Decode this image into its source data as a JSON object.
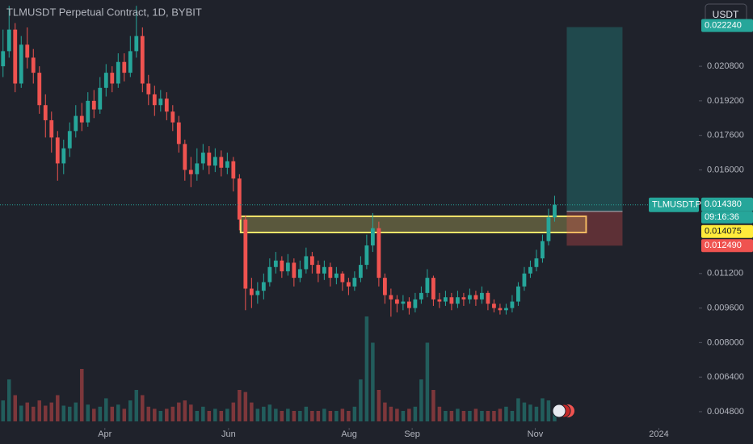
{
  "chart_data": {
    "type": "candlestick",
    "title": "TLMUSDT Perpetual Contract, 1D, BYBIT",
    "currency": "USDT",
    "up_color": "#26a69a",
    "down_color": "#ef5350",
    "open": [
      0.0208,
      0.0215,
      0.0225,
      0.02,
      0.0218,
      0.0212,
      0.0205,
      0.019,
      0.0183,
      0.0175,
      0.0163,
      0.017,
      0.0178,
      0.0185,
      0.0182,
      0.0192,
      0.0188,
      0.0198,
      0.0205,
      0.02,
      0.021,
      0.0205,
      0.0215,
      0.0222,
      0.02,
      0.0195,
      0.019,
      0.0193,
      0.0187,
      0.0182,
      0.0172,
      0.016,
      0.0158,
      0.0163,
      0.0168,
      0.0162,
      0.0166,
      0.0161,
      0.0164,
      0.0156,
      0.0137,
      0.0105,
      0.0102,
      0.0104,
      0.0108,
      0.0115,
      0.0118,
      0.0113,
      0.0117,
      0.011,
      0.0114,
      0.012,
      0.0116,
      0.0112,
      0.0115,
      0.011,
      0.0112,
      0.0108,
      0.0106,
      0.011,
      0.0116,
      0.0125,
      0.0133,
      0.011,
      0.0102,
      0.01,
      0.0098,
      0.0099,
      0.0096,
      0.01,
      0.0103,
      0.011,
      0.01,
      0.0099,
      0.0101,
      0.0098,
      0.0101,
      0.01,
      0.0102,
      0.01,
      0.0103,
      0.0098,
      0.0096,
      0.0095,
      0.0096,
      0.0099,
      0.0106,
      0.0112,
      0.0115,
      0.0119,
      0.0127,
      0.0138
    ],
    "high": [
      0.0225,
      0.0236,
      0.0228,
      0.0222,
      0.0226,
      0.0216,
      0.0208,
      0.0195,
      0.0187,
      0.0178,
      0.0174,
      0.0182,
      0.019,
      0.0191,
      0.0196,
      0.0197,
      0.0203,
      0.0209,
      0.0208,
      0.0214,
      0.0214,
      0.0222,
      0.0236,
      0.0226,
      0.0204,
      0.0199,
      0.0197,
      0.0196,
      0.019,
      0.0185,
      0.0174,
      0.0166,
      0.017,
      0.0172,
      0.0171,
      0.017,
      0.0169,
      0.0168,
      0.0166,
      0.0158,
      0.0139,
      0.011,
      0.0108,
      0.0112,
      0.0119,
      0.0122,
      0.012,
      0.0121,
      0.0119,
      0.0118,
      0.0124,
      0.0122,
      0.0118,
      0.0118,
      0.0117,
      0.0115,
      0.0113,
      0.011,
      0.0113,
      0.012,
      0.013,
      0.014,
      0.0136,
      0.0112,
      0.0105,
      0.0102,
      0.0102,
      0.0101,
      0.0103,
      0.0106,
      0.0114,
      0.0111,
      0.0103,
      0.0104,
      0.0103,
      0.0104,
      0.0103,
      0.0105,
      0.0104,
      0.0106,
      0.0104,
      0.01,
      0.0098,
      0.0098,
      0.0102,
      0.0108,
      0.0115,
      0.0118,
      0.0123,
      0.013,
      0.0142,
      0.0148
    ],
    "low": [
      0.0203,
      0.0212,
      0.0196,
      0.0198,
      0.0207,
      0.02,
      0.0186,
      0.0175,
      0.0168,
      0.0155,
      0.0158,
      0.0166,
      0.0175,
      0.0178,
      0.018,
      0.0184,
      0.0186,
      0.0194,
      0.0196,
      0.0198,
      0.0201,
      0.0203,
      0.0212,
      0.0196,
      0.019,
      0.0185,
      0.0187,
      0.0183,
      0.0178,
      0.0168,
      0.0155,
      0.0152,
      0.0155,
      0.016,
      0.0158,
      0.0159,
      0.0157,
      0.0158,
      0.015,
      0.0132,
      0.0095,
      0.0096,
      0.0098,
      0.01,
      0.0106,
      0.0112,
      0.011,
      0.0111,
      0.0106,
      0.0108,
      0.0112,
      0.0112,
      0.0108,
      0.0109,
      0.0106,
      0.0107,
      0.0104,
      0.0102,
      0.0104,
      0.0108,
      0.0114,
      0.0122,
      0.0106,
      0.0098,
      0.0092,
      0.0094,
      0.0095,
      0.0093,
      0.0094,
      0.0098,
      0.0101,
      0.0097,
      0.0096,
      0.0097,
      0.0095,
      0.0096,
      0.0097,
      0.0098,
      0.0097,
      0.0098,
      0.0095,
      0.0094,
      0.0093,
      0.0093,
      0.0094,
      0.0097,
      0.0104,
      0.011,
      0.0113,
      0.0117,
      0.0125,
      0.0136
    ],
    "close": [
      0.0215,
      0.0225,
      0.02,
      0.0218,
      0.0212,
      0.0205,
      0.019,
      0.0183,
      0.0175,
      0.0163,
      0.017,
      0.0178,
      0.0185,
      0.0182,
      0.0192,
      0.0188,
      0.0198,
      0.0205,
      0.02,
      0.021,
      0.0205,
      0.0215,
      0.0222,
      0.02,
      0.0195,
      0.019,
      0.0193,
      0.0187,
      0.0182,
      0.0172,
      0.016,
      0.0158,
      0.0163,
      0.0168,
      0.0162,
      0.0166,
      0.0161,
      0.0164,
      0.0156,
      0.0137,
      0.0105,
      0.0102,
      0.0104,
      0.0108,
      0.0115,
      0.0118,
      0.0113,
      0.0117,
      0.011,
      0.0114,
      0.012,
      0.0116,
      0.0112,
      0.0115,
      0.011,
      0.0112,
      0.0108,
      0.0106,
      0.011,
      0.0116,
      0.0125,
      0.0133,
      0.011,
      0.0102,
      0.01,
      0.0098,
      0.0099,
      0.0096,
      0.01,
      0.0103,
      0.011,
      0.01,
      0.0099,
      0.0101,
      0.0098,
      0.0101,
      0.01,
      0.0102,
      0.01,
      0.0103,
      0.0098,
      0.0096,
      0.0095,
      0.0096,
      0.0099,
      0.0106,
      0.0112,
      0.0115,
      0.0119,
      0.0127,
      0.0138,
      0.01438
    ],
    "volume": [
      20,
      40,
      25,
      15,
      18,
      14,
      20,
      15,
      18,
      25,
      15,
      14,
      18,
      50,
      16,
      12,
      14,
      22,
      14,
      16,
      12,
      20,
      30,
      25,
      14,
      12,
      10,
      12,
      14,
      18,
      20,
      16,
      10,
      14,
      10,
      12,
      10,
      12,
      18,
      30,
      28,
      18,
      12,
      14,
      16,
      12,
      10,
      12,
      10,
      10,
      14,
      10,
      10,
      12,
      10,
      10,
      12,
      10,
      14,
      40,
      100,
      75,
      30,
      18,
      14,
      12,
      10,
      12,
      14,
      40,
      75,
      30,
      14,
      10,
      10,
      12,
      10,
      10,
      12,
      10,
      10,
      10,
      12,
      14,
      10,
      22,
      18,
      16,
      14,
      22,
      20,
      12
    ],
    "volume_lim": [
      0,
      100
    ],
    "xlim": [
      -0.5,
      114.8
    ],
    "xticks": [
      {
        "value": 16.8,
        "label": "Apr"
      },
      {
        "value": 37.2,
        "label": "Jun"
      },
      {
        "value": 57.1,
        "label": "Aug"
      },
      {
        "value": 67.5,
        "label": "Sep"
      },
      {
        "value": 87.8,
        "label": "Nov"
      },
      {
        "value": 108.2,
        "label": "2024"
      }
    ],
    "ylim": [
      0.00405,
      0.02387
    ],
    "yticks": [
      {
        "value": 0.0048,
        "label": "0.004800"
      },
      {
        "value": 0.0064,
        "label": "0.006400"
      },
      {
        "value": 0.008,
        "label": "0.008000"
      },
      {
        "value": 0.0096,
        "label": "0.009600"
      },
      {
        "value": 0.0112,
        "label": "0.011200"
      },
      {
        "value": 0.016,
        "label": "0.016000"
      },
      {
        "value": 0.0176,
        "label": "0.017600"
      },
      {
        "value": 0.0192,
        "label": "0.019200"
      },
      {
        "value": 0.0208,
        "label": "0.020800"
      }
    ],
    "symbol_label": "TLMUSDT.P",
    "last_price": {
      "value": 0.01438,
      "label": "0.014380"
    },
    "countdown": "09:16:36",
    "zone": {
      "start": 39.2,
      "end": 96.2,
      "low": 0.0131,
      "high": 0.01385,
      "color": "#f5e66b"
    },
    "position": {
      "start": 93.0,
      "end": 102.2,
      "entry": 0.014075,
      "target": {
        "value": 0.02224,
        "label": "0.022240"
      },
      "stop": {
        "value": 0.01249,
        "label": "0.012490"
      }
    }
  }
}
